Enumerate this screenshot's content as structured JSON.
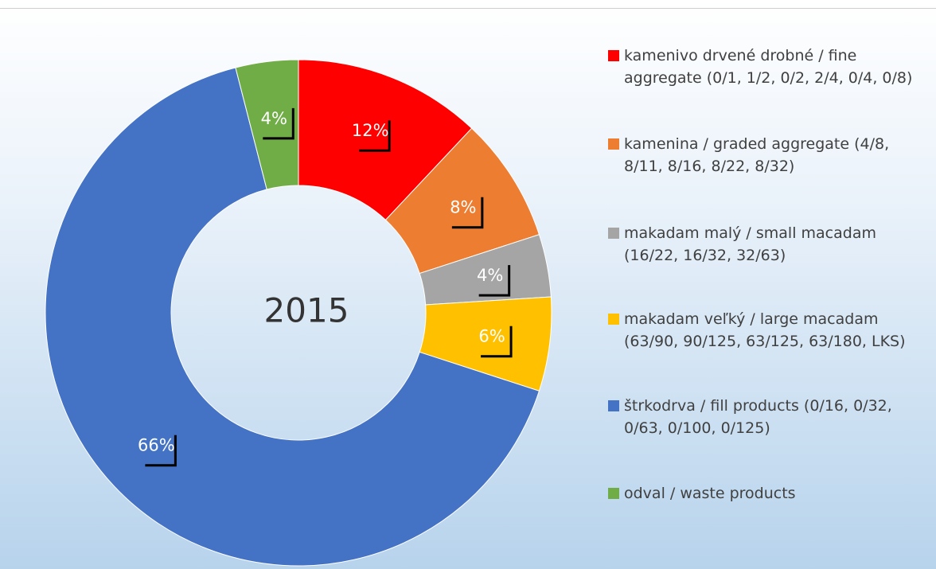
{
  "chart_data": {
    "type": "donut",
    "center_label": "2015",
    "categories": [
      "kamenivo drvené drobné / fine aggregate (0/1, 1/2, 0/2, 2/4, 0/4, 0/8)",
      "kamenina / graded aggregate (4/8, 8/11, 8/16, 8/22, 8/32)",
      "makadam malý / small macadam (16/22, 16/32, 32/63)",
      "makadam veľký / large macadam (63/90, 90/125, 63/125, 63/180, LKS)",
      "štrkodrva / fill products (0/16, 0/32, 0/63, 0/100, 0/125)",
      "odval / waste products"
    ],
    "values": [
      12,
      8,
      4,
      6,
      66,
      4
    ],
    "value_labels": [
      "12%",
      "8%",
      "4%",
      "6%",
      "66%",
      "4%"
    ],
    "colors": [
      "#ff0000",
      "#ed7d31",
      "#a5a5a5",
      "#ffc000",
      "#4472c4",
      "#70ad47"
    ]
  }
}
